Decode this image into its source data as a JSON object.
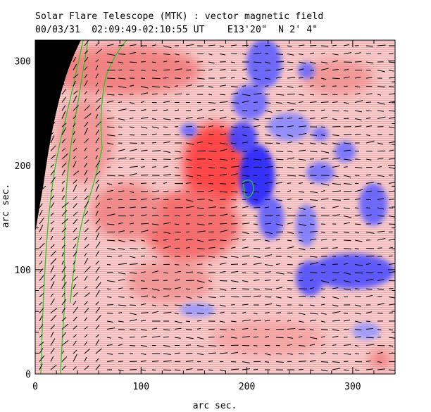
{
  "header": {
    "title": "Solar Flare Telescope (MTK) : vector magnetic field",
    "subtitle": "00/03/31  02:09:49-02:10:55 UT    E13'20\"  N 2' 4\""
  },
  "axes": {
    "xlabel": "arc sec.",
    "ylabel": "arc sec.",
    "xlim": [
      0,
      340
    ],
    "ylim": [
      0,
      320
    ],
    "xticks": [
      0,
      100,
      200,
      300
    ],
    "yticks": [
      0,
      100,
      200,
      300
    ]
  },
  "colors": {
    "positive": "#ff5050",
    "negative": "#4a4aff",
    "background": "#f4c4c4",
    "limb": "#000000",
    "contour": "#22cc22",
    "vector": "#000000"
  }
}
